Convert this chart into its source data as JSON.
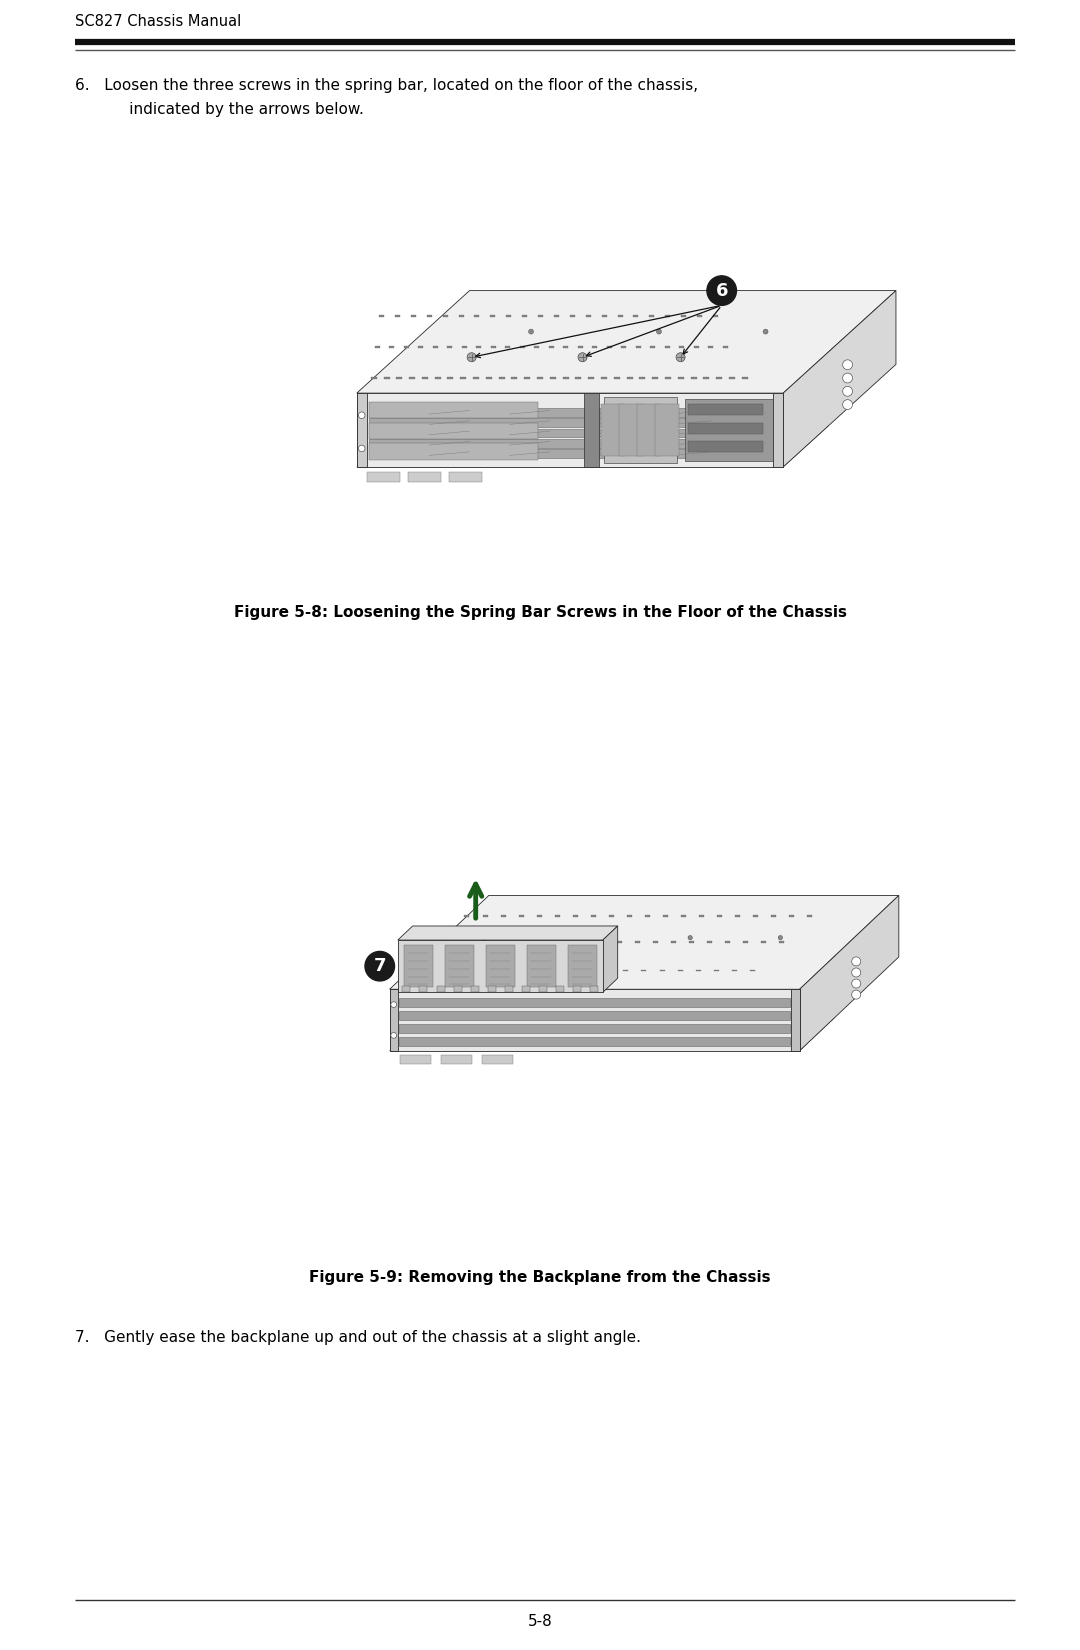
{
  "background_color": "#ffffff",
  "page_width": 10.8,
  "page_height": 16.5,
  "header_text": "SC827 Chassis Manual",
  "header_font_size": 10.5,
  "footer_text": "5-8",
  "footer_font_size": 11,
  "step6_line1": "6.   Loosen the three screws in the spring bar, located on the floor of the chassis,",
  "step6_line2": "      indicated by the arrows below.",
  "step6_fontsize": 11,
  "fig8_caption": "Figure 5-8: Loosening the Spring Bar Screws in the Floor of the Chassis",
  "fig9_caption": "Figure 5-9: Removing the Backplane from the Chassis",
  "step7_text": "7.   Gently ease the backplane up and out of the chassis at a slight angle.",
  "step7_fontsize": 11,
  "caption_fontsize": 11
}
